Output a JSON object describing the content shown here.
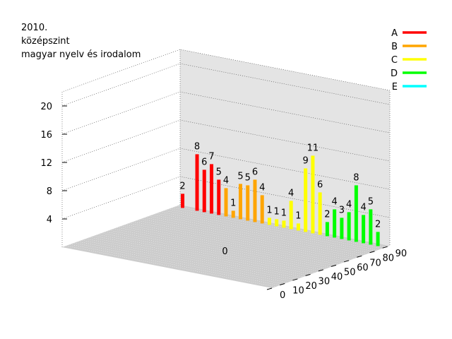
{
  "title_lines": [
    "2010.",
    "középszint",
    "magyar nyelv és irodalom"
  ],
  "chart_data": {
    "type": "bar3d",
    "title": "2010. középszint magyar nyelv és irodalom",
    "x_ticks": [
      0,
      10,
      20,
      30,
      40,
      50,
      60,
      70,
      80,
      90
    ],
    "z_ticks": [
      4,
      8,
      12,
      16,
      20
    ],
    "zlim": [
      0,
      22
    ],
    "grid": true,
    "legend_position": "top-right",
    "series": [
      {
        "name": "A",
        "color": "#ff0000",
        "points": [
          {
            "x": 1,
            "v": 2
          },
          {
            "x": 3,
            "v": 8
          },
          {
            "x": 4,
            "v": 6
          },
          {
            "x": 5,
            "v": 7
          },
          {
            "x": 6,
            "v": 5
          }
        ]
      },
      {
        "name": "B",
        "color": "#ffa500",
        "points": [
          {
            "x": 7,
            "v": 4
          },
          {
            "x": 8,
            "v": 1
          },
          {
            "x": 9,
            "v": 5
          },
          {
            "x": 10,
            "v": 5
          },
          {
            "x": 11,
            "v": 6
          },
          {
            "x": 12,
            "v": 4
          }
        ]
      },
      {
        "name": "C",
        "color": "#ffff00",
        "points": [
          {
            "x": 13,
            "v": 1
          },
          {
            "x": 14,
            "v": 1
          },
          {
            "x": 15,
            "v": 1
          },
          {
            "x": 16,
            "v": 4
          },
          {
            "x": 17,
            "v": 1
          },
          {
            "x": 18,
            "v": 9
          },
          {
            "x": 19,
            "v": 11
          },
          {
            "x": 20,
            "v": 6
          }
        ]
      },
      {
        "name": "D",
        "color": "#00ff00",
        "points": [
          {
            "x": 21,
            "v": 2
          },
          {
            "x": 22,
            "v": 4
          },
          {
            "x": 23,
            "v": 3
          },
          {
            "x": 24,
            "v": 4
          },
          {
            "x": 25,
            "v": 8
          },
          {
            "x": 26,
            "v": 4
          },
          {
            "x": 27,
            "v": 5
          },
          {
            "x": 28,
            "v": 2
          }
        ]
      },
      {
        "name": "E",
        "color": "#00ffff",
        "points": []
      }
    ],
    "annotations": [
      {
        "text": "0"
      }
    ]
  }
}
